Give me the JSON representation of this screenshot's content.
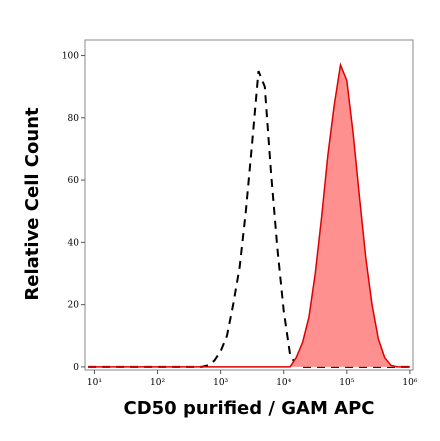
{
  "chart_data": {
    "type": "histogram-overlay",
    "xlabel": "CD50 purified / GAM APC",
    "ylabel": "Relative Cell Count",
    "log_x": true,
    "xlim": [
      7.08,
      1120000
    ],
    "xticks": [
      {
        "value": 10,
        "label": "10¹"
      },
      {
        "value": 100,
        "label": "10²"
      },
      {
        "value": 1000,
        "label": "10³"
      },
      {
        "value": 10000,
        "label": "10⁴"
      },
      {
        "value": 100000,
        "label": "10⁵"
      },
      {
        "value": 1000000,
        "label": "10⁶"
      }
    ],
    "ylim": [
      -1,
      105
    ],
    "yticks": [
      0,
      20,
      40,
      60,
      80,
      100
    ],
    "x": [
      7.94,
      316,
      398,
      501,
      631,
      794,
      1000,
      1260,
      1580,
      2000,
      2510,
      3160,
      3980,
      5010,
      6310,
      7940,
      10000,
      12600,
      15800,
      20000,
      25100,
      31600,
      39800,
      50100,
      63100,
      79400,
      100000,
      126000,
      158000,
      200000,
      251000,
      316000,
      398000,
      501000,
      631000,
      794000,
      1000000
    ],
    "series": [
      {
        "color": "#000000",
        "style": "dashed",
        "values": [
          0,
          0,
          0,
          0,
          0.5,
          2,
          5,
          10,
          20,
          32,
          50,
          72,
          95,
          90,
          62,
          38,
          18,
          4,
          0.5,
          0,
          0,
          0,
          0,
          0,
          0,
          0,
          0,
          0,
          0,
          0,
          0,
          0,
          0,
          0,
          0,
          0,
          0
        ]
      },
      {
        "color": "#dd0000",
        "fill": "#ff9090",
        "style": "solid",
        "values": [
          0,
          0,
          0,
          0,
          0,
          0,
          0,
          0,
          0,
          0,
          0,
          0,
          0,
          0,
          0,
          0,
          0,
          0,
          3,
          8,
          16,
          30,
          48,
          68,
          84,
          97,
          92,
          75,
          55,
          35,
          20,
          9,
          3,
          0.5,
          0,
          0,
          0
        ]
      }
    ]
  }
}
